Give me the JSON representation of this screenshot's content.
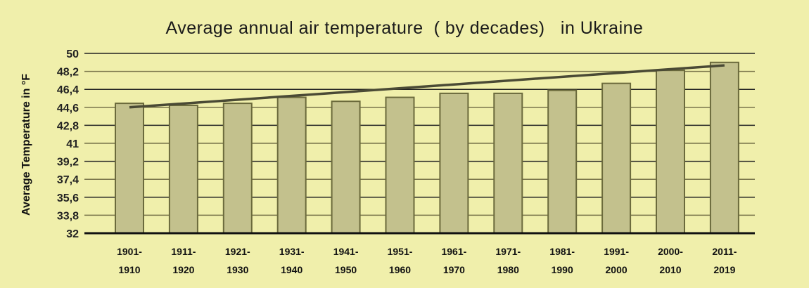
{
  "chart_data": {
    "type": "bar",
    "title": "Average annual air temperature  ( by decades)   in Ukraine",
    "xlabel": "",
    "ylabel": "Average Temperature in °F",
    "ylim": [
      32,
      50
    ],
    "yticks": [
      "32",
      "33,8",
      "35,6",
      "37,4",
      "39,2",
      "41",
      "42,8",
      "44,6",
      "46,4",
      "48,2",
      "50"
    ],
    "grid": true,
    "categories": [
      [
        "1901-",
        "1910"
      ],
      [
        "1911-",
        "1920"
      ],
      [
        "1921-",
        "1930"
      ],
      [
        "1931-",
        "1940"
      ],
      [
        "1941-",
        "1950"
      ],
      [
        "1951-",
        "1960"
      ],
      [
        "1961-",
        "1970"
      ],
      [
        "1971-",
        "1980"
      ],
      [
        "1981-",
        "1990"
      ],
      [
        "1991-",
        "2000"
      ],
      [
        "2000-",
        "2010"
      ],
      [
        "2011-",
        "2019"
      ]
    ],
    "values": [
      45.0,
      44.8,
      45.0,
      45.6,
      45.2,
      45.6,
      46.0,
      46.0,
      46.3,
      47.0,
      48.3,
      49.1
    ],
    "trendline": {
      "type": "linear",
      "start": 44.6,
      "end": 48.8
    },
    "colors": {
      "background": "#f0efab",
      "bar": "#c3c18d",
      "bar_border": "#6b6a3c",
      "trend": "#4a4a35"
    }
  }
}
